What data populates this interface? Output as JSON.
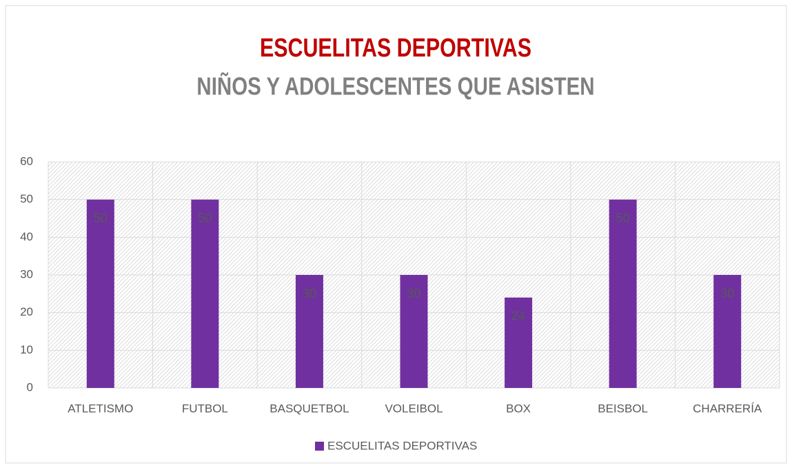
{
  "chart_data": {
    "type": "bar",
    "title": "ESCUELITAS DEPORTIVAS",
    "subtitle": "NIÑOS Y ADOLESCENTES QUE ASISTEN",
    "categories": [
      "ATLETISMO",
      "FUTBOL",
      "BASQUETBOL",
      "VOLEIBOL",
      "BOX",
      "BEISBOL",
      "CHARRERÍA"
    ],
    "series": [
      {
        "name": "ESCUELITAS DEPORTIVAS",
        "color": "#7030a0",
        "values": [
          50,
          50,
          30,
          30,
          24,
          50,
          30
        ]
      }
    ],
    "ylim": [
      0,
      60
    ],
    "yticks": [
      0,
      10,
      20,
      30,
      40,
      50,
      60
    ],
    "grid": true,
    "legend": "bottom"
  }
}
